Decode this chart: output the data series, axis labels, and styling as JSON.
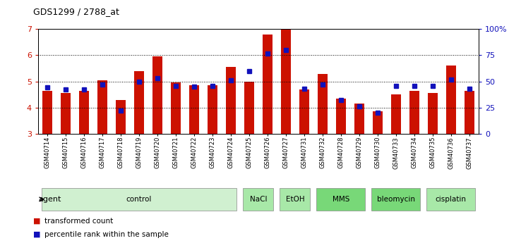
{
  "title": "GDS1299 / 2788_at",
  "samples": [
    "GSM40714",
    "GSM40715",
    "GSM40716",
    "GSM40717",
    "GSM40718",
    "GSM40719",
    "GSM40720",
    "GSM40721",
    "GSM40722",
    "GSM40723",
    "GSM40724",
    "GSM40725",
    "GSM40726",
    "GSM40727",
    "GSM40731",
    "GSM40732",
    "GSM40728",
    "GSM40729",
    "GSM40730",
    "GSM40733",
    "GSM40734",
    "GSM40735",
    "GSM40736",
    "GSM40737"
  ],
  "transformed_count": [
    4.65,
    4.55,
    4.65,
    5.05,
    4.3,
    5.4,
    5.95,
    4.95,
    4.85,
    4.85,
    5.55,
    5.0,
    6.8,
    7.0,
    4.68,
    5.28,
    4.35,
    4.15,
    3.85,
    4.5,
    4.65,
    4.55,
    5.6,
    4.65
  ],
  "percentile_rank": [
    44,
    42,
    42,
    47,
    22,
    50,
    53,
    46,
    45,
    46,
    51,
    60,
    77,
    80,
    43,
    47,
    32,
    26,
    20,
    46,
    46,
    46,
    52,
    43
  ],
  "agents": [
    {
      "label": "control",
      "start": 0,
      "end": 11,
      "color": "#d0f0d0"
    },
    {
      "label": "NaCl",
      "start": 11,
      "end": 13,
      "color": "#a8e8a8"
    },
    {
      "label": "EtOH",
      "start": 13,
      "end": 15,
      "color": "#a8e8a8"
    },
    {
      "label": "MMS",
      "start": 15,
      "end": 18,
      "color": "#78d878"
    },
    {
      "label": "bleomycin",
      "start": 18,
      "end": 21,
      "color": "#78d878"
    },
    {
      "label": "cisplatin",
      "start": 21,
      "end": 24,
      "color": "#a8e8a8"
    }
  ],
  "bar_color": "#cc1100",
  "blue_color": "#1111bb",
  "ylim_left": [
    3,
    7
  ],
  "ylim_right": [
    0,
    100
  ],
  "yticks_left": [
    3,
    4,
    5,
    6,
    7
  ],
  "yticks_right": [
    0,
    25,
    50,
    75,
    100
  ],
  "ytick_labels_right": [
    "0",
    "25",
    "50",
    "75",
    "100%"
  ],
  "bar_width": 0.55
}
